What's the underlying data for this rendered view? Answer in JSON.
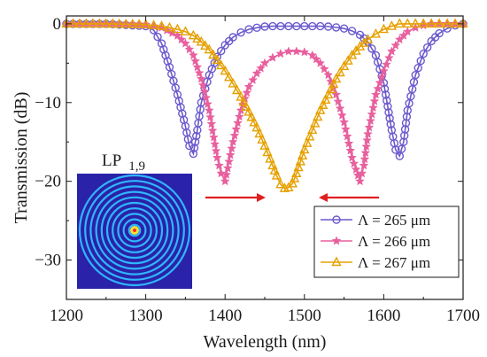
{
  "chart_data": {
    "type": "line",
    "xlabel": "Wavelength (nm)",
    "ylabel": "Transmission (dB)",
    "xlim": [
      1200,
      1700
    ],
    "ylim": [
      -35,
      1
    ],
    "x_ticks": [
      1200,
      1300,
      1400,
      1500,
      1600,
      1700
    ],
    "y_ticks": [
      0,
      -10,
      -20,
      -30
    ],
    "grid": false,
    "legend_position": "bottom-right",
    "series": [
      {
        "name": "Λ = 265 μm",
        "color": "#6a5acd",
        "marker": "circle",
        "x": [
          1200,
          1250,
          1300,
          1310,
          1320,
          1330,
          1340,
          1350,
          1355,
          1360,
          1365,
          1370,
          1380,
          1390,
          1400,
          1410,
          1420,
          1430,
          1440,
          1450,
          1460,
          1470,
          1480,
          1490,
          1500,
          1510,
          1520,
          1530,
          1540,
          1550,
          1560,
          1570,
          1580,
          1590,
          1600,
          1605,
          1610,
          1615,
          1620,
          1625,
          1630,
          1640,
          1650,
          1660,
          1670,
          1680,
          1690,
          1700
        ],
        "y": [
          0,
          0,
          -0.3,
          -0.8,
          -2.5,
          -5.5,
          -9,
          -13,
          -15.5,
          -16.5,
          -13.5,
          -10,
          -6.5,
          -4.2,
          -2.7,
          -1.7,
          -1.1,
          -0.7,
          -0.5,
          -0.35,
          -0.3,
          -0.3,
          -0.3,
          -0.3,
          -0.3,
          -0.3,
          -0.3,
          -0.35,
          -0.45,
          -0.6,
          -0.9,
          -1.4,
          -2.3,
          -4,
          -7.5,
          -10.5,
          -13.5,
          -16,
          -16.8,
          -15,
          -11,
          -6.5,
          -3.8,
          -2.2,
          -1.2,
          -0.6,
          -0.2,
          0
        ]
      },
      {
        "name": "Λ = 266 μm",
        "color": "#e8609e",
        "marker": "star",
        "x": [
          1200,
          1250,
          1300,
          1320,
          1340,
          1350,
          1360,
          1370,
          1380,
          1390,
          1395,
          1400,
          1410,
          1420,
          1430,
          1440,
          1450,
          1460,
          1470,
          1480,
          1490,
          1500,
          1510,
          1520,
          1530,
          1540,
          1550,
          1560,
          1570,
          1575,
          1580,
          1590,
          1600,
          1610,
          1620,
          1630,
          1640,
          1650,
          1660,
          1670,
          1680,
          1690,
          1700
        ],
        "y": [
          0,
          0,
          -0.1,
          -0.5,
          -1.5,
          -2.5,
          -4,
          -7,
          -11,
          -17,
          -19,
          -20,
          -15,
          -11,
          -8,
          -6.3,
          -5,
          -4.3,
          -3.8,
          -3.5,
          -3.5,
          -3.6,
          -4,
          -5,
          -6.5,
          -9,
          -12.5,
          -17,
          -20,
          -18,
          -14,
          -9,
          -6,
          -3.5,
          -2,
          -1,
          -0.5,
          -0.2,
          0,
          0,
          0,
          0,
          0
        ]
      },
      {
        "name": "Λ = 267 μm",
        "color": "#e6a000",
        "marker": "triangle",
        "x": [
          1200,
          1250,
          1300,
          1320,
          1340,
          1350,
          1360,
          1370,
          1380,
          1390,
          1400,
          1410,
          1420,
          1430,
          1440,
          1450,
          1460,
          1465,
          1470,
          1475,
          1480,
          1485,
          1490,
          1495,
          1500,
          1510,
          1520,
          1530,
          1540,
          1550,
          1560,
          1570,
          1580,
          1590,
          1600,
          1610,
          1620,
          1630,
          1640,
          1650,
          1660,
          1680,
          1700
        ],
        "y": [
          0,
          0,
          -0.1,
          -0.3,
          -0.7,
          -1,
          -1.5,
          -2.3,
          -3.3,
          -4.6,
          -6,
          -7.6,
          -9.3,
          -11.2,
          -13.2,
          -15.5,
          -18,
          -19.3,
          -20.4,
          -20.9,
          -20.8,
          -20.3,
          -19,
          -17.5,
          -16,
          -13.5,
          -11,
          -9,
          -7,
          -5.4,
          -4,
          -2.9,
          -2,
          -1.3,
          -0.7,
          -0.3,
          0,
          0,
          0,
          0,
          0,
          0,
          0
        ]
      }
    ]
  },
  "mode_label": {
    "main": "LP",
    "sub": "1,9"
  },
  "arrows": {
    "color": "#e02020"
  }
}
